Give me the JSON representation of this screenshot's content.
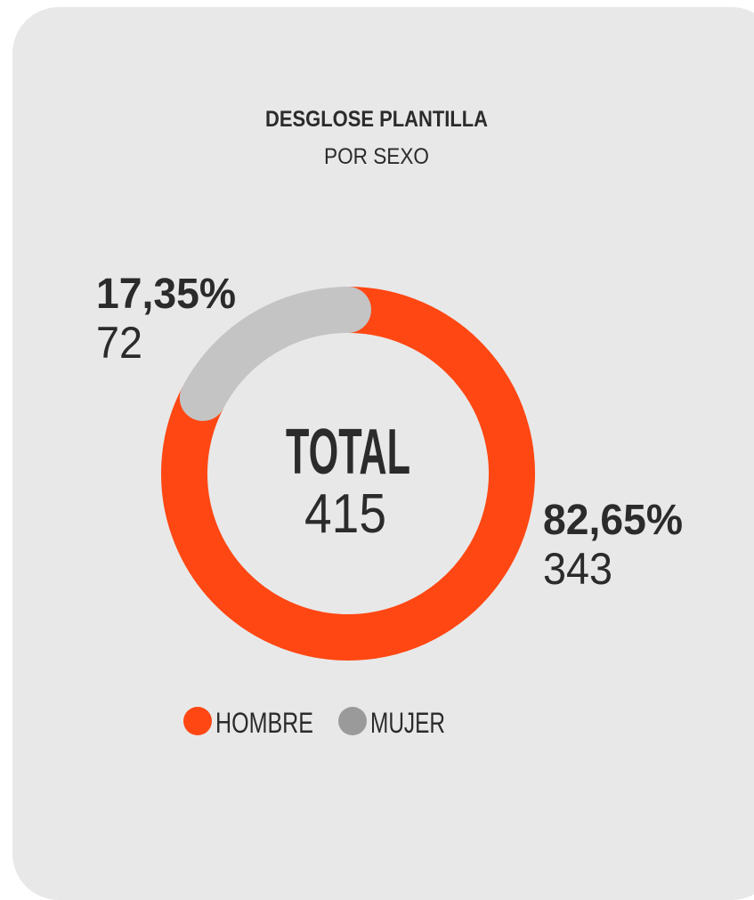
{
  "chart_data": {
    "type": "donut",
    "title": "DESGLOSE PLANTILLA",
    "subtitle": "POR SEXO",
    "categories": [
      "HOMBRE",
      "MUJER"
    ],
    "values": [
      82.65,
      17.35
    ],
    "value_labels": [
      "82,65%",
      "17,35%"
    ],
    "counts": [
      343,
      72
    ],
    "colors": [
      "#ff4713",
      "#c4c4c4"
    ],
    "center_label": "TOTAL",
    "total": 415
  }
}
